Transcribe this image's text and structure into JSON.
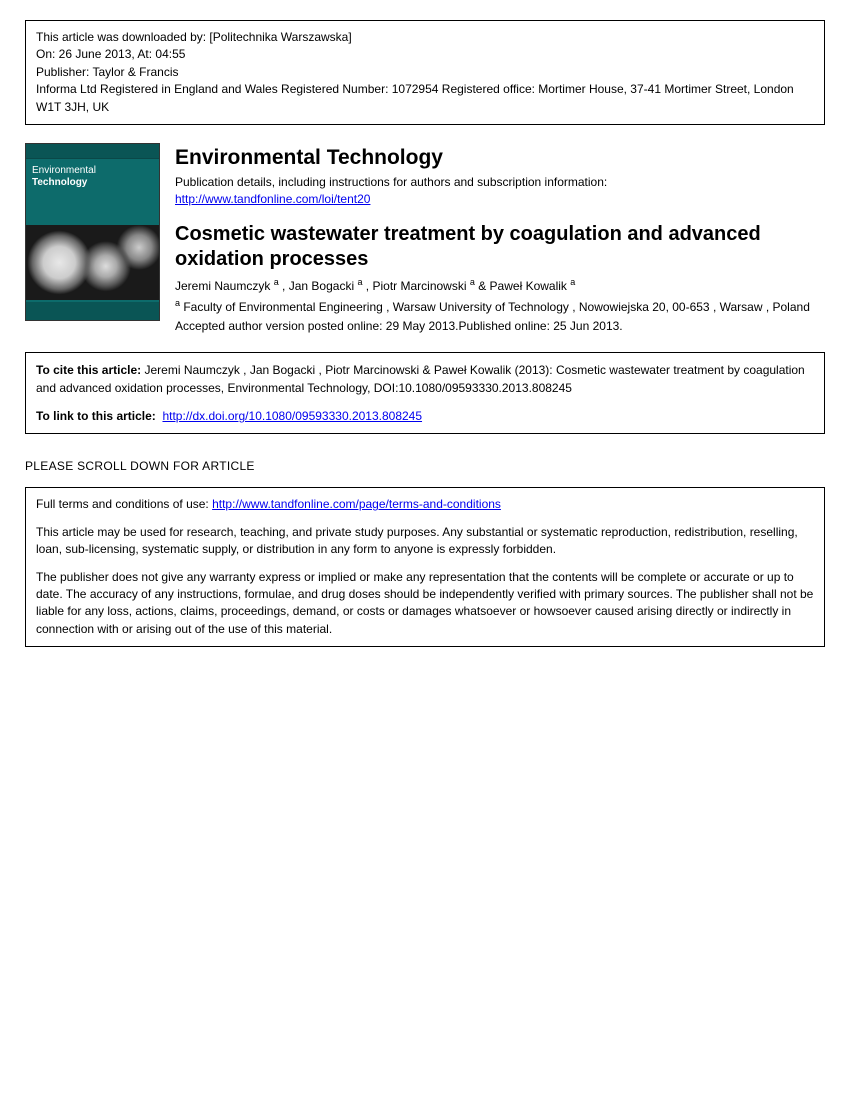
{
  "download_info": {
    "line1": "This article was downloaded by: [Politechnika Warszawska]",
    "line2": "On: 26 June 2013, At: 04:55",
    "line3": "Publisher: Taylor & Francis",
    "line4": "Informa Ltd Registered in England and Wales Registered Number: 1072954 Registered office: Mortimer House, 37-41 Mortimer Street, London W1T 3JH, UK"
  },
  "cover": {
    "title_line1": "Environmental",
    "title_line2": "Technology"
  },
  "journal": {
    "name": "Environmental Technology",
    "details": "Publication details, including instructions for authors and subscription information:",
    "url": "http://www.tandfonline.com/loi/tent20"
  },
  "article": {
    "title": "Cosmetic wastewater treatment by coagulation and advanced oxidation processes",
    "author1": "Jeremi Naumczyk",
    "author2": "Jan Bogacki",
    "author3": "Piotr Marcinowski",
    "author4": "Paweł Kowalik",
    "sup": "a",
    "affiliation": " Faculty of Environmental Engineering , Warsaw University of Technology , Nowowiejska 20, 00-653 , Warsaw , Poland",
    "pub_date": "Accepted author version posted online: 29 May 2013.Published online: 25 Jun 2013."
  },
  "cite": {
    "label": "To cite this article:",
    "text": " Jeremi Naumczyk , Jan Bogacki , Piotr Marcinowski & Paweł Kowalik (2013): Cosmetic wastewater treatment by coagulation and advanced oxidation processes, Environmental Technology, DOI:10.1080/09593330.2013.808245",
    "link_label": "To link to this article:",
    "link_url": "http://dx.doi.org/10.1080/09593330.2013.808245"
  },
  "scroll_hint": "PLEASE SCROLL DOWN FOR ARTICLE",
  "terms": {
    "line1_prefix": "Full terms and conditions of use: ",
    "line1_url": "http://www.tandfonline.com/page/terms-and-conditions",
    "para1": "This article may be used for research, teaching, and private study purposes. Any substantial or systematic reproduction, redistribution, reselling, loan, sub-licensing, systematic supply, or distribution in any form to anyone is expressly forbidden.",
    "para2": "The publisher does not give any warranty express or implied or make any representation that the contents will be complete or accurate or up to date. The accuracy of any instructions, formulae, and drug doses should be independently verified with primary sources. The publisher shall not be liable for any loss, actions, claims, proceedings, demand, or costs or damages whatsoever or howsoever caused arising directly or indirectly in connection with or arising out of the use of this material."
  }
}
